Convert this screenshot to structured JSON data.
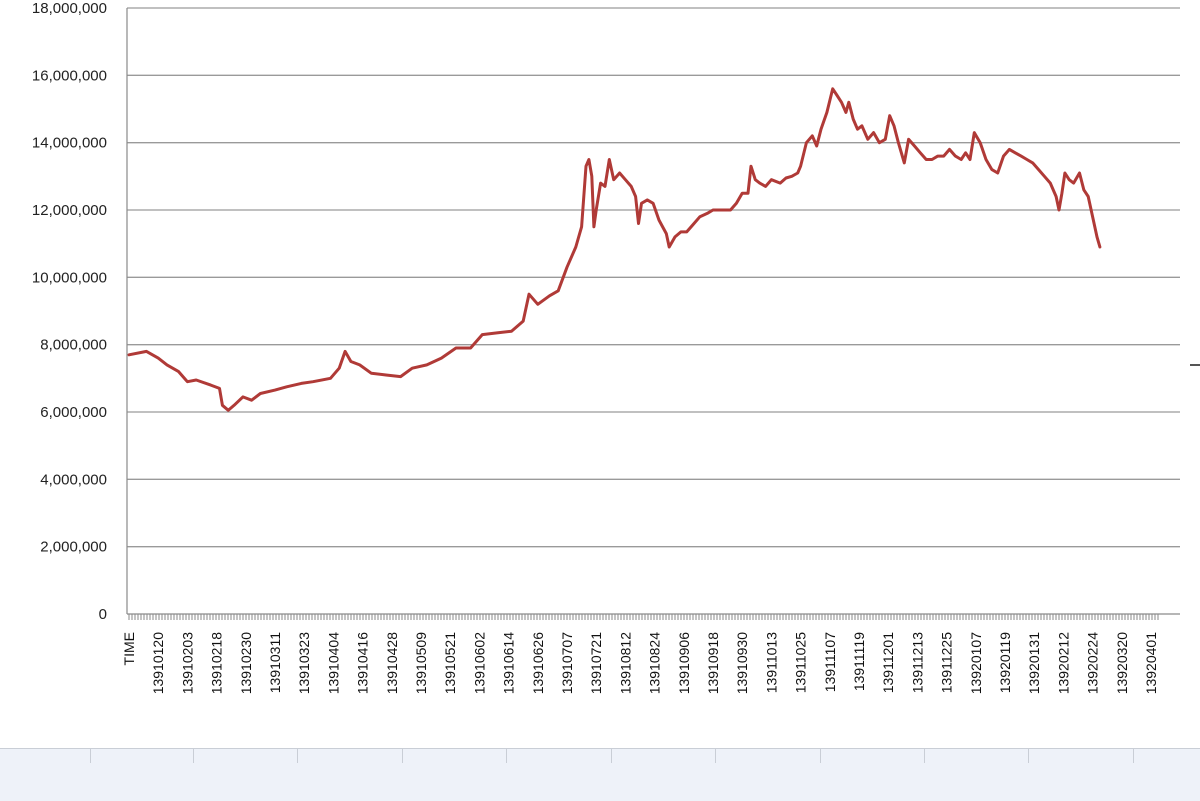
{
  "chart_data": {
    "type": "line",
    "title": "",
    "xlabel": "",
    "ylabel": "",
    "ylim": [
      0,
      18000000
    ],
    "yticks": [
      0,
      2000000,
      4000000,
      6000000,
      8000000,
      10000000,
      12000000,
      14000000,
      16000000,
      18000000
    ],
    "ytick_labels": [
      "0",
      "2,000,000",
      "4,000,000",
      "6,000,000",
      "8,000,000",
      "10,000,000",
      "12,000,000",
      "14,000,000",
      "16,000,000",
      "18,000,000"
    ],
    "xtick_labels": [
      "TIME",
      "13910120",
      "13910203",
      "13910218",
      "13910230",
      "13910311",
      "13910323",
      "13910404",
      "13910416",
      "13910428",
      "13910509",
      "13910521",
      "13910602",
      "13910614",
      "13910626",
      "13910707",
      "13910721",
      "13910812",
      "13910824",
      "13910906",
      "13910918",
      "13910930",
      "13911013",
      "13911025",
      "13911107",
      "13911119",
      "13911201",
      "13911213",
      "13911225",
      "13920107",
      "13920119",
      "13920131",
      "13920212",
      "13920224",
      "13920320",
      "13920401"
    ],
    "grid": true,
    "legend": "none",
    "series": [
      {
        "color": "#b03a37",
        "points": [
          [
            0,
            7700000
          ],
          [
            0.6,
            7800000
          ],
          [
            1.0,
            7600000
          ],
          [
            1.3,
            7400000
          ],
          [
            1.7,
            7200000
          ],
          [
            2.0,
            6900000
          ],
          [
            2.3,
            6950000
          ],
          [
            2.8,
            6800000
          ],
          [
            3.1,
            6700000
          ],
          [
            3.2,
            6200000
          ],
          [
            3.4,
            6050000
          ],
          [
            3.6,
            6200000
          ],
          [
            3.9,
            6450000
          ],
          [
            4.2,
            6350000
          ],
          [
            4.5,
            6550000
          ],
          [
            5.0,
            6650000
          ],
          [
            5.4,
            6750000
          ],
          [
            5.9,
            6850000
          ],
          [
            6.3,
            6900000
          ],
          [
            6.9,
            7000000
          ],
          [
            7.2,
            7300000
          ],
          [
            7.4,
            7800000
          ],
          [
            7.6,
            7500000
          ],
          [
            7.9,
            7400000
          ],
          [
            8.3,
            7150000
          ],
          [
            8.8,
            7100000
          ],
          [
            9.3,
            7050000
          ],
          [
            9.7,
            7300000
          ],
          [
            10.2,
            7400000
          ],
          [
            10.7,
            7600000
          ],
          [
            11.2,
            7900000
          ],
          [
            11.7,
            7900000
          ],
          [
            12.1,
            8300000
          ],
          [
            12.6,
            8350000
          ],
          [
            13.1,
            8400000
          ],
          [
            13.5,
            8700000
          ],
          [
            13.7,
            9500000
          ],
          [
            14.0,
            9200000
          ],
          [
            14.4,
            9450000
          ],
          [
            14.7,
            9600000
          ],
          [
            15.0,
            10300000
          ],
          [
            15.3,
            10900000
          ],
          [
            15.5,
            11500000
          ],
          [
            15.65,
            13300000
          ],
          [
            15.75,
            13500000
          ],
          [
            15.85,
            13000000
          ],
          [
            15.92,
            11500000
          ],
          [
            16.0,
            12000000
          ],
          [
            16.15,
            12800000
          ],
          [
            16.3,
            12700000
          ],
          [
            16.45,
            13500000
          ],
          [
            16.6,
            12900000
          ],
          [
            16.8,
            13100000
          ],
          [
            17.0,
            12900000
          ],
          [
            17.2,
            12700000
          ],
          [
            17.35,
            12400000
          ],
          [
            17.45,
            11600000
          ],
          [
            17.55,
            12200000
          ],
          [
            17.75,
            12300000
          ],
          [
            17.95,
            12200000
          ],
          [
            18.15,
            11700000
          ],
          [
            18.4,
            11300000
          ],
          [
            18.5,
            10900000
          ],
          [
            18.7,
            11200000
          ],
          [
            18.9,
            11350000
          ],
          [
            19.1,
            11350000
          ],
          [
            19.3,
            11550000
          ],
          [
            19.55,
            11800000
          ],
          [
            19.8,
            11900000
          ],
          [
            20.0,
            12000000
          ],
          [
            20.4,
            12000000
          ],
          [
            20.6,
            12000000
          ],
          [
            20.8,
            12200000
          ],
          [
            21.0,
            12500000
          ],
          [
            21.2,
            12500000
          ],
          [
            21.3,
            13300000
          ],
          [
            21.45,
            12900000
          ],
          [
            21.6,
            12800000
          ],
          [
            21.8,
            12700000
          ],
          [
            22.0,
            12900000
          ],
          [
            22.3,
            12800000
          ],
          [
            22.5,
            12950000
          ],
          [
            22.7,
            13000000
          ],
          [
            22.9,
            13100000
          ],
          [
            23.0,
            13300000
          ],
          [
            23.2,
            14000000
          ],
          [
            23.4,
            14200000
          ],
          [
            23.55,
            13900000
          ],
          [
            23.7,
            14400000
          ],
          [
            23.9,
            14900000
          ],
          [
            24.1,
            15600000
          ],
          [
            24.25,
            15400000
          ],
          [
            24.4,
            15200000
          ],
          [
            24.55,
            14900000
          ],
          [
            24.65,
            15200000
          ],
          [
            24.8,
            14700000
          ],
          [
            24.95,
            14400000
          ],
          [
            25.1,
            14500000
          ],
          [
            25.3,
            14100000
          ],
          [
            25.5,
            14300000
          ],
          [
            25.7,
            14000000
          ],
          [
            25.9,
            14100000
          ],
          [
            26.05,
            14800000
          ],
          [
            26.2,
            14500000
          ],
          [
            26.35,
            14000000
          ],
          [
            26.55,
            13400000
          ],
          [
            26.7,
            14100000
          ],
          [
            26.9,
            13900000
          ],
          [
            27.1,
            13700000
          ],
          [
            27.3,
            13500000
          ],
          [
            27.5,
            13500000
          ],
          [
            27.7,
            13600000
          ],
          [
            27.9,
            13600000
          ],
          [
            28.1,
            13800000
          ],
          [
            28.3,
            13600000
          ],
          [
            28.5,
            13500000
          ],
          [
            28.65,
            13700000
          ],
          [
            28.8,
            13500000
          ],
          [
            28.95,
            14300000
          ],
          [
            29.15,
            14000000
          ],
          [
            29.35,
            13500000
          ],
          [
            29.55,
            13200000
          ],
          [
            29.75,
            13100000
          ],
          [
            29.95,
            13600000
          ],
          [
            30.15,
            13800000
          ],
          [
            30.35,
            13700000
          ],
          [
            30.55,
            13600000
          ],
          [
            30.75,
            13500000
          ],
          [
            30.95,
            13400000
          ],
          [
            31.15,
            13200000
          ],
          [
            31.35,
            13000000
          ],
          [
            31.55,
            12800000
          ],
          [
            31.75,
            12400000
          ],
          [
            31.85,
            12000000
          ],
          [
            31.95,
            12500000
          ],
          [
            32.05,
            13100000
          ],
          [
            32.2,
            12900000
          ],
          [
            32.35,
            12800000
          ],
          [
            32.55,
            13100000
          ],
          [
            32.7,
            12600000
          ],
          [
            32.85,
            12400000
          ],
          [
            33.0,
            11800000
          ],
          [
            33.15,
            11200000
          ],
          [
            33.25,
            10900000
          ]
        ]
      }
    ]
  }
}
